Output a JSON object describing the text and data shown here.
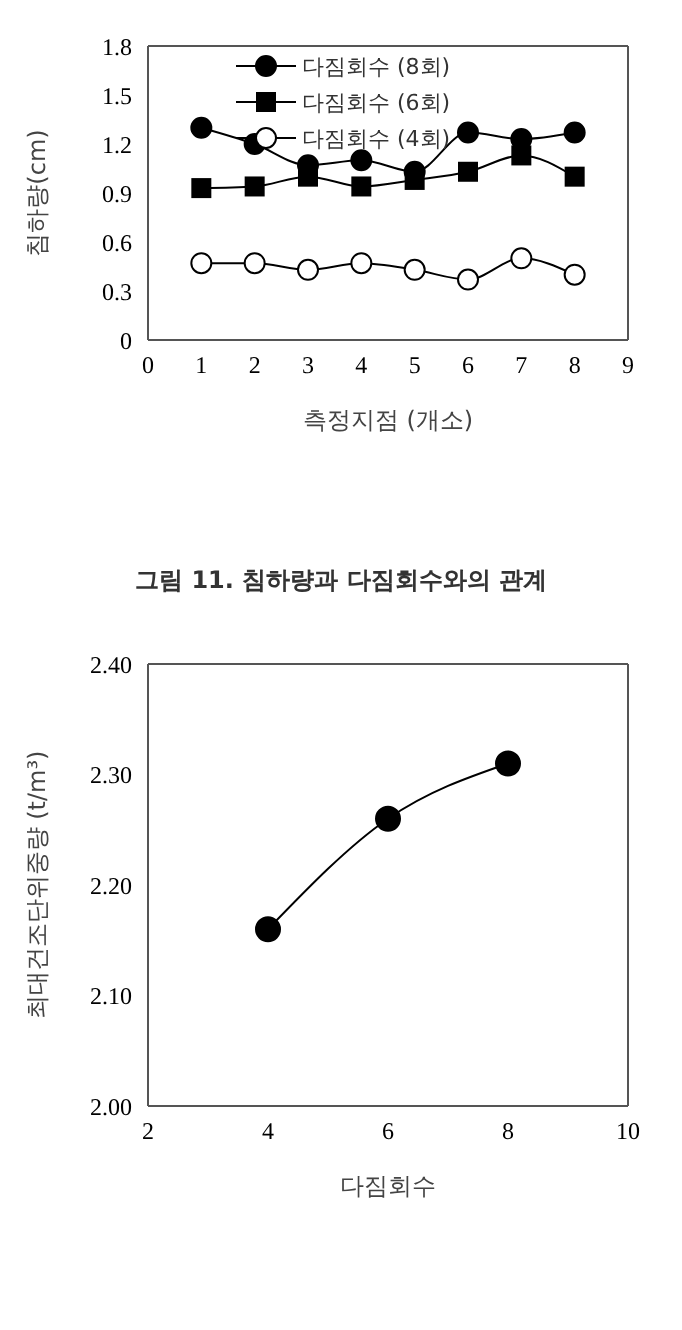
{
  "chart_data": [
    {
      "type": "line",
      "xlabel": "측정지점 (개소)",
      "ylabel": "침하량(cm)",
      "x": [
        1,
        2,
        3,
        4,
        5,
        6,
        7,
        8
      ],
      "xlim": [
        0,
        9
      ],
      "xticks": [
        0,
        1,
        2,
        3,
        4,
        5,
        6,
        7,
        8,
        9
      ],
      "ylim": [
        0,
        1.8
      ],
      "yticks": [
        0,
        0.3,
        0.6,
        0.9,
        1.2,
        1.5,
        1.8
      ],
      "grid": false,
      "legend": "top",
      "line_style": "solid",
      "series": [
        {
          "name": "다짐회수 (8회)",
          "color": "#000000",
          "marker": "circle",
          "values": [
            1.3,
            1.2,
            1.07,
            1.1,
            1.03,
            1.27,
            1.23,
            1.27
          ]
        },
        {
          "name": "다짐회수 (6회)",
          "color": "#000000",
          "marker": "square",
          "values": [
            0.93,
            0.94,
            1.0,
            0.94,
            0.98,
            1.03,
            1.13,
            1.0
          ]
        },
        {
          "name": "다짐회수 (4회)",
          "color": "#000000",
          "marker": "circle-open",
          "values": [
            0.47,
            0.47,
            0.43,
            0.47,
            0.43,
            0.37,
            0.5,
            0.4
          ]
        }
      ],
      "annotations": [
        "그림 11. 침하량과 다짐회수와의 관계"
      ]
    },
    {
      "type": "line",
      "xlabel": "다짐회수",
      "ylabel": "최대건조단위중량 (t/m³)",
      "x": [
        4,
        6,
        8
      ],
      "xlim": [
        2,
        10
      ],
      "xticks": [
        2,
        4,
        6,
        8,
        10
      ],
      "ylim": [
        2.0,
        2.4
      ],
      "yticks": [
        {
          "value": 2.0,
          "label": "2.00"
        },
        {
          "value": 2.1,
          "label": "2.10"
        },
        {
          "value": 2.2,
          "label": "2.20"
        },
        {
          "value": 2.3,
          "label": "2.30"
        },
        {
          "value": 2.4,
          "label": "2.40"
        }
      ],
      "grid": false,
      "legend": false,
      "marker": "circle",
      "line_style": "solid",
      "series": [
        {
          "color": "#000000",
          "values": [
            2.16,
            2.26,
            2.31
          ]
        }
      ]
    }
  ]
}
